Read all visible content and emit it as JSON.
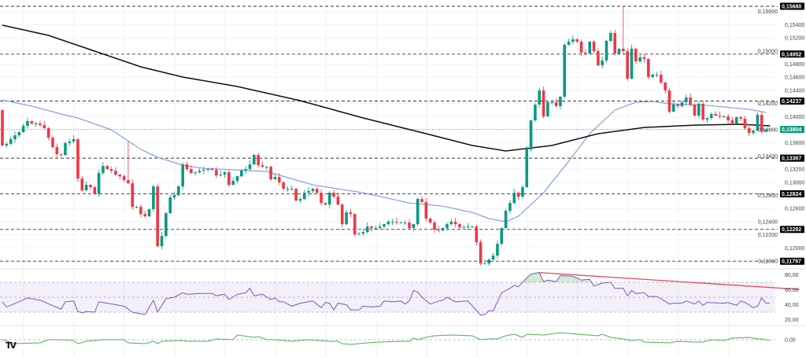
{
  "chart_data": {
    "type": "candlestick",
    "price_axis": {
      "ylim": [
        0.117,
        0.157
      ],
      "tick_values": [
        0.156,
        0.154,
        0.152,
        0.15,
        0.148,
        0.146,
        0.144,
        0.142,
        0.14,
        0.138,
        0.136,
        0.134,
        0.132,
        0.13,
        0.128,
        0.126,
        0.124,
        0.122,
        0.12,
        0.118
      ],
      "tick_labels": [
        "0,15600",
        "0,15400",
        "0,15200",
        "0,15000",
        "0,14800",
        "0,14600",
        "0,14400",
        "0,14200",
        "0,14000",
        "0,13800",
        "0,13600",
        "0,13400",
        "0,13200",
        "0,13000",
        "0,12800",
        "0,12600",
        "0,12400",
        "0,12200",
        "0,12000",
        "0,11800"
      ]
    },
    "levels": [
      {
        "value": 0.1568,
        "label": "0,15680"
      },
      {
        "value": 0.14952,
        "label": "0,14952"
      },
      {
        "value": 0.14237,
        "label": "0,14237"
      },
      {
        "value": 0.13367,
        "label": "0,13367"
      },
      {
        "value": 0.12824,
        "label": "0,12824"
      },
      {
        "value": 0.12282,
        "label": "0,12282"
      },
      {
        "value": 0.11797,
        "label": "0,11797"
      }
    ],
    "current_price": {
      "value": 0.13804,
      "label": "0,13804"
    },
    "first_open": 0.141,
    "closes": [
      0.1356,
      0.13584,
      0.13656,
      0.13715,
      0.13763,
      0.13859,
      0.13931,
      0.13895,
      0.13895,
      0.13871,
      0.13823,
      0.1368,
      0.13536,
      0.13428,
      0.13416,
      0.13596,
      0.1362,
      0.13656,
      0.13057,
      0.12877,
      0.12961,
      0.12925,
      0.12829,
      0.1314,
      0.13248,
      0.132,
      0.13176,
      0.13116,
      0.13092,
      0.13033,
      0.12985,
      0.12625,
      0.12625,
      0.12517,
      0.12482,
      0.12589,
      0.12937,
      0.12026,
      0.12182,
      0.12529,
      0.12769,
      0.12805,
      0.12937,
      0.13272,
      0.132,
      0.1314,
      0.13152,
      0.13176,
      0.13188,
      0.132,
      0.13188,
      0.13104,
      0.13116,
      0.13152,
      0.12961,
      0.13021,
      0.13092,
      0.13176,
      0.132,
      0.13272,
      0.13416,
      0.1326,
      0.13236,
      0.13236,
      0.13045,
      0.1308,
      0.12997,
      0.12901,
      0.12901,
      0.12901,
      0.12721,
      0.12745,
      0.12841,
      0.12865,
      0.12901,
      0.12841,
      0.12685,
      0.12661,
      0.12841,
      0.12781,
      0.12661,
      0.12362,
      0.12541,
      0.12517,
      0.12206,
      0.12218,
      0.12242,
      0.12326,
      0.12302,
      0.12302,
      0.12326,
      0.12362,
      0.12398,
      0.12398,
      0.12386,
      0.12386,
      0.12386,
      0.12302,
      0.12362,
      0.12745,
      0.12697,
      0.12446,
      0.12386,
      0.12278,
      0.12266,
      0.12302,
      0.12362,
      0.12398,
      0.12362,
      0.12314,
      0.12314,
      0.12326,
      0.12326,
      0.12086,
      0.11763,
      0.11763,
      0.11823,
      0.11883,
      0.12062,
      0.12302,
      0.12565,
      0.12685,
      0.12841,
      0.12781,
      0.12925,
      0.135,
      0.13943,
      0.14183,
      0.14398,
      0.14003,
      0.14219,
      0.14219,
      0.14159,
      0.14303,
      0.15093,
      0.15141,
      0.15177,
      0.15141,
      0.14973,
      0.14961,
      0.15141,
      0.14997,
      0.14782,
      0.14854,
      0.15153,
      0.15273,
      0.14961,
      0.15033,
      0.14997,
      0.14578,
      0.15033,
      0.14842,
      0.14902,
      0.14878,
      0.14602,
      0.14638,
      0.14638,
      0.14518,
      0.14398,
      0.14075,
      0.14183,
      0.14159,
      0.14219,
      0.14291,
      0.14183,
      0.14015,
      0.14195,
      0.13955,
      0.13979,
      0.14039,
      0.14015,
      0.14003,
      0.14003,
      0.13943,
      0.13895,
      0.13991,
      0.13967,
      0.13823,
      0.13751,
      0.13787,
      0.14027,
      0.13775,
      0.13804
    ],
    "notable_highs": [
      [
        148,
        0.1568
      ],
      [
        30,
        0.1362
      ]
    ],
    "ma_long": [
      [
        0,
        0.15393
      ],
      [
        11,
        0.15237
      ],
      [
        22,
        0.14997
      ],
      [
        33,
        0.14758
      ],
      [
        43,
        0.14602
      ],
      [
        56,
        0.14458
      ],
      [
        71,
        0.14243
      ],
      [
        86,
        0.13979
      ],
      [
        101,
        0.1374
      ],
      [
        112,
        0.1356
      ],
      [
        120,
        0.13476
      ],
      [
        131,
        0.1356
      ],
      [
        142,
        0.1374
      ],
      [
        153,
        0.13835
      ],
      [
        165,
        0.13871
      ],
      [
        176,
        0.13883
      ],
      [
        183,
        0.13859
      ]
    ],
    "ma_short": [
      [
        0,
        0.14255
      ],
      [
        7,
        0.14159
      ],
      [
        14,
        0.14039
      ],
      [
        18,
        0.13979
      ],
      [
        26,
        0.13799
      ],
      [
        33,
        0.135
      ],
      [
        37,
        0.1338
      ],
      [
        43,
        0.1326
      ],
      [
        48,
        0.13212
      ],
      [
        56,
        0.13188
      ],
      [
        63,
        0.13164
      ],
      [
        74,
        0.12961
      ],
      [
        86,
        0.12841
      ],
      [
        97,
        0.12685
      ],
      [
        105,
        0.12637
      ],
      [
        112,
        0.12541
      ],
      [
        116,
        0.12446
      ],
      [
        120,
        0.12398
      ],
      [
        123,
        0.12482
      ],
      [
        129,
        0.12841
      ],
      [
        135,
        0.1332
      ],
      [
        140,
        0.1374
      ],
      [
        146,
        0.14099
      ],
      [
        151,
        0.14219
      ],
      [
        155,
        0.14231
      ],
      [
        159,
        0.14195
      ],
      [
        168,
        0.14171
      ],
      [
        178,
        0.14111
      ],
      [
        182,
        0.14063
      ]
    ],
    "rsi": {
      "ylim": [
        10,
        90
      ],
      "tick_values": [
        80,
        60,
        40,
        20
      ],
      "tick_labels": [
        "80,00",
        "60,00",
        "40,00",
        "20,00"
      ],
      "band": [
        30,
        70
      ],
      "mid": 50,
      "points": [
        [
          0,
          44
        ],
        [
          1,
          37
        ],
        [
          4,
          44
        ],
        [
          6,
          49
        ],
        [
          9,
          46
        ],
        [
          14,
          34
        ],
        [
          15,
          44
        ],
        [
          17,
          45
        ],
        [
          18,
          31
        ],
        [
          19,
          29
        ],
        [
          20,
          31
        ],
        [
          22,
          30
        ],
        [
          23,
          44
        ],
        [
          29,
          38
        ],
        [
          31,
          30
        ],
        [
          34,
          27
        ],
        [
          36,
          46
        ],
        [
          37,
          30
        ],
        [
          39,
          48
        ],
        [
          41,
          50
        ],
        [
          43,
          56
        ],
        [
          44,
          54
        ],
        [
          47,
          55
        ],
        [
          50,
          55
        ],
        [
          51,
          52
        ],
        [
          53,
          54
        ],
        [
          54,
          47
        ],
        [
          56,
          54
        ],
        [
          58,
          56
        ],
        [
          59,
          62
        ],
        [
          60,
          52
        ],
        [
          62,
          54
        ],
        [
          64,
          47
        ],
        [
          65,
          49
        ],
        [
          66,
          44
        ],
        [
          67,
          44
        ],
        [
          69,
          38
        ],
        [
          71,
          42
        ],
        [
          72,
          43
        ],
        [
          74,
          45
        ],
        [
          76,
          36
        ],
        [
          77,
          43
        ],
        [
          78,
          42
        ],
        [
          79,
          33
        ],
        [
          80,
          42
        ],
        [
          82,
          40
        ],
        [
          83,
          33
        ],
        [
          85,
          33
        ],
        [
          86,
          38
        ],
        [
          88,
          37
        ],
        [
          90,
          38
        ],
        [
          91,
          45
        ],
        [
          93,
          44
        ],
        [
          95,
          45
        ],
        [
          96,
          41
        ],
        [
          97,
          45
        ],
        [
          98,
          59
        ],
        [
          99,
          57
        ],
        [
          100,
          50
        ],
        [
          102,
          41
        ],
        [
          104,
          45
        ],
        [
          105,
          46
        ],
        [
          106,
          50
        ],
        [
          108,
          44
        ],
        [
          111,
          45
        ],
        [
          114,
          26
        ],
        [
          115,
          27
        ],
        [
          116,
          32
        ],
        [
          117,
          32
        ],
        [
          119,
          56
        ],
        [
          121,
          62
        ],
        [
          122,
          66
        ],
        [
          123,
          64
        ],
        [
          125,
          76
        ],
        [
          126,
          81
        ],
        [
          128,
          83
        ],
        [
          129,
          71
        ],
        [
          130,
          73
        ],
        [
          132,
          71
        ],
        [
          133,
          79
        ],
        [
          136,
          78
        ],
        [
          138,
          73
        ],
        [
          140,
          74
        ],
        [
          141,
          65
        ],
        [
          143,
          69
        ],
        [
          145,
          70
        ],
        [
          146,
          62
        ],
        [
          148,
          62
        ],
        [
          149,
          52
        ],
        [
          150,
          59
        ],
        [
          151,
          55
        ],
        [
          153,
          56
        ],
        [
          154,
          51
        ],
        [
          156,
          51
        ],
        [
          157,
          48
        ],
        [
          159,
          41
        ],
        [
          160,
          42
        ],
        [
          162,
          42
        ],
        [
          163,
          45
        ],
        [
          165,
          41
        ],
        [
          166,
          45
        ],
        [
          167,
          39
        ],
        [
          168,
          43
        ],
        [
          172,
          42
        ],
        [
          173,
          43
        ],
        [
          175,
          39
        ],
        [
          176,
          45
        ],
        [
          177,
          43
        ],
        [
          179,
          36
        ],
        [
          180,
          38
        ],
        [
          181,
          49
        ],
        [
          182,
          42
        ],
        [
          182.9,
          42
        ]
      ],
      "trendline": {
        "start": [
          128,
          83
        ],
        "end": [
          190,
          60.5
        ]
      }
    },
    "oscillator": {
      "tick_values": [
        0
      ],
      "tick_labels": [
        "0,00"
      ],
      "ylim": [
        -0.01,
        0.01
      ],
      "points": [
        [
          0,
          0
        ],
        [
          3,
          -0.0025
        ],
        [
          9,
          -0.002
        ],
        [
          11,
          0
        ],
        [
          14,
          0
        ],
        [
          17,
          -0.0005
        ],
        [
          18,
          -0.0025
        ],
        [
          20,
          -0.001
        ],
        [
          24,
          0
        ],
        [
          29,
          0
        ],
        [
          30,
          -0.002
        ],
        [
          34,
          -0.0025
        ],
        [
          36,
          -0.001
        ],
        [
          37,
          -0.0025
        ],
        [
          38,
          -0.001
        ],
        [
          43,
          -0.0005
        ],
        [
          44,
          -0.001
        ],
        [
          49,
          -0.001
        ],
        [
          51,
          0.0005
        ],
        [
          55,
          0
        ],
        [
          56,
          0.003
        ],
        [
          60,
          0.0015
        ],
        [
          61,
          0.002
        ],
        [
          63,
          0
        ],
        [
          65,
          0
        ],
        [
          69,
          -0.001
        ],
        [
          73,
          0
        ],
        [
          78,
          -0.001
        ],
        [
          80,
          -0.001
        ],
        [
          81,
          -0.0025
        ],
        [
          83,
          -0.003
        ],
        [
          87,
          -0.002
        ],
        [
          90,
          -0.0015
        ],
        [
          95,
          -0.001
        ],
        [
          97,
          -0.001
        ],
        [
          98,
          0.001
        ],
        [
          99,
          0
        ],
        [
          101,
          0.0015
        ],
        [
          103,
          0.0025
        ],
        [
          107,
          0.003
        ],
        [
          112,
          0.0025
        ],
        [
          114,
          0
        ],
        [
          116,
          0.0005
        ],
        [
          118,
          0.0005
        ],
        [
          120,
          0.0025
        ],
        [
          122,
          0.0035
        ],
        [
          124,
          0.0015
        ],
        [
          125,
          0.0035
        ],
        [
          129,
          0.003
        ],
        [
          133,
          0.0045
        ],
        [
          137,
          0.0035
        ],
        [
          142,
          0.0025
        ],
        [
          143,
          0.0035
        ],
        [
          145,
          0.0015
        ],
        [
          148,
          0.0005
        ],
        [
          150,
          -0.0005
        ],
        [
          152,
          0
        ],
        [
          153,
          -0.0015
        ],
        [
          159,
          -0.002
        ],
        [
          161,
          -0.001
        ],
        [
          165,
          -0.0015
        ],
        [
          167,
          -0.0015
        ],
        [
          169,
          0
        ],
        [
          172,
          -0.0005
        ],
        [
          174,
          0.001
        ],
        [
          178,
          0.0015
        ],
        [
          180,
          0.0005
        ],
        [
          181,
          0.0005
        ],
        [
          182.9,
          -0.0005
        ]
      ]
    },
    "colors": {
      "up": "#089981",
      "down": "#f23645",
      "ma_long": "#111111",
      "ma_short": "#6f8fe8",
      "rsi": "#7e57c2",
      "rsi_band": "#7e57c2",
      "trendline": "#e8465e",
      "oscillator": "#4caf50",
      "level_label_bg": "#000000",
      "current_label_bg": "#089981"
    },
    "grid": true
  },
  "branding": {
    "logo_text": "TV"
  }
}
